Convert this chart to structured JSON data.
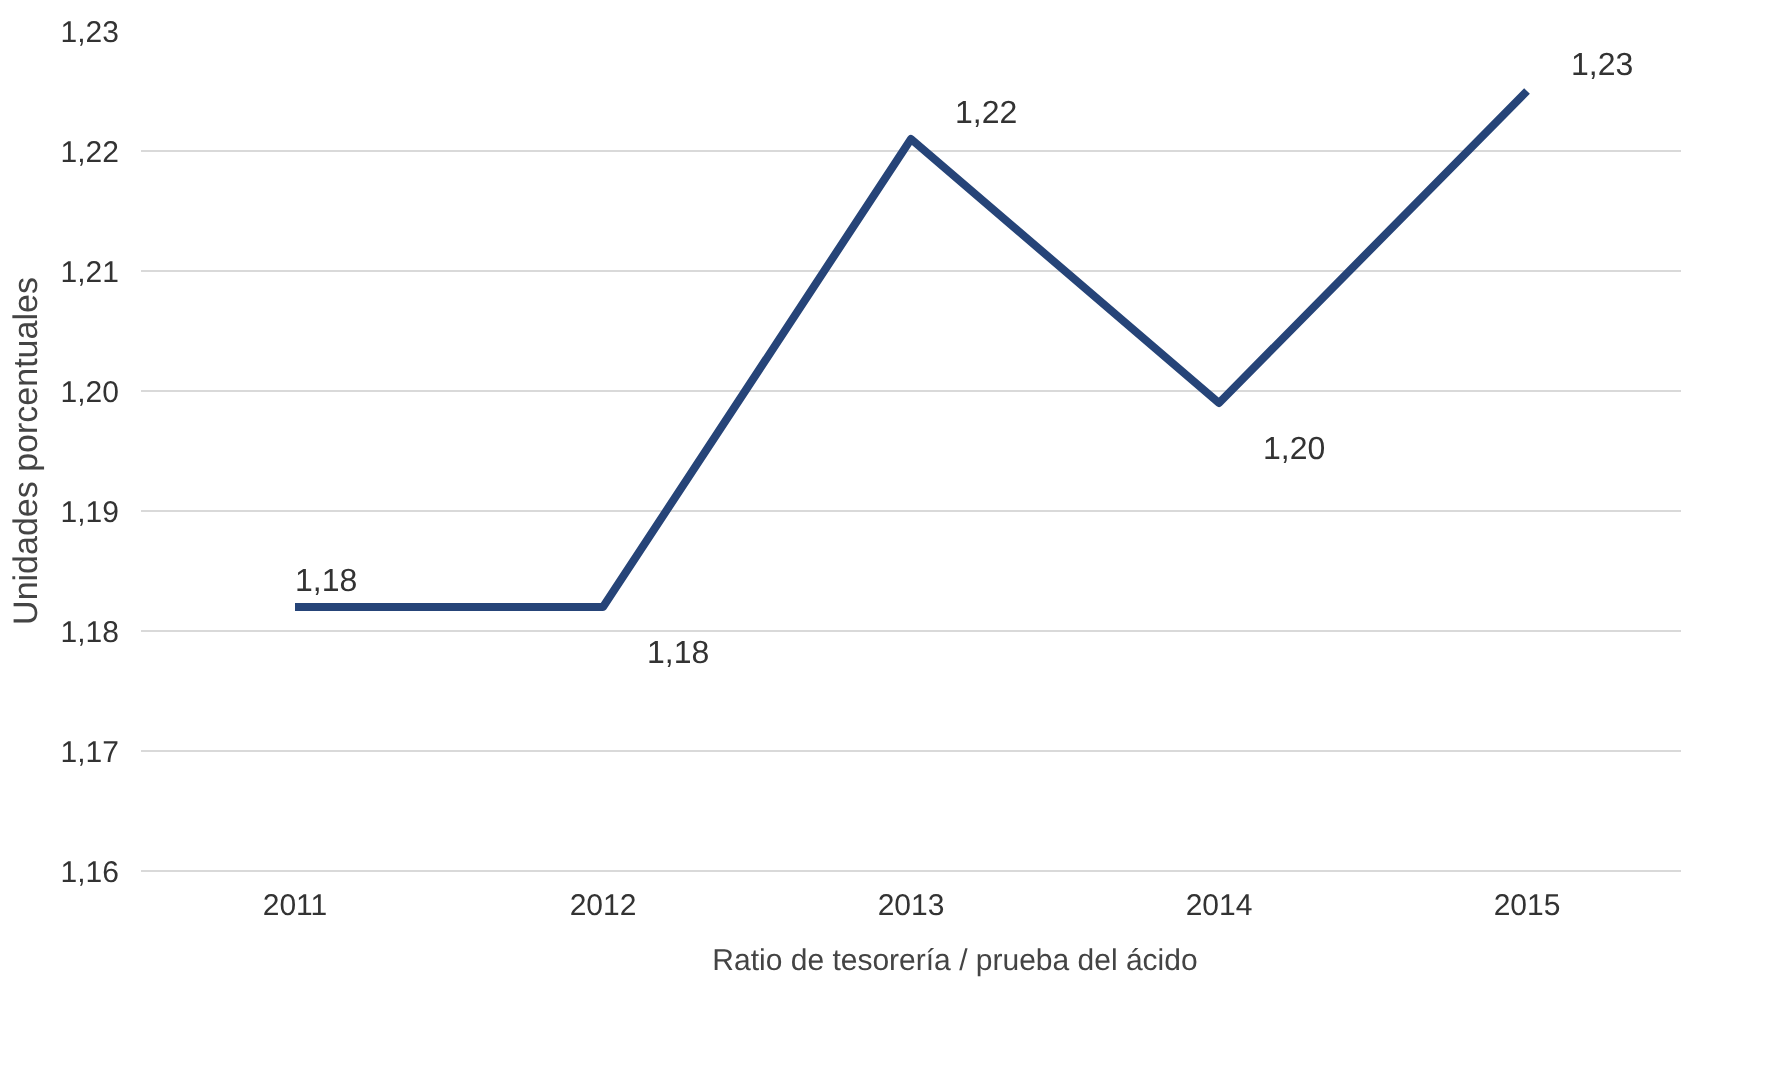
{
  "chart_data": {
    "type": "line",
    "ylabel": "Unidades porcentuales",
    "categories": [
      "2011",
      "2012",
      "2013",
      "2014",
      "2015"
    ],
    "series": [
      {
        "name": "Ratio de tesorería / prueba del ácido",
        "color": "#264478",
        "values": [
          1.182,
          1.182,
          1.221,
          1.199,
          1.225
        ],
        "value_labels": [
          "1,18",
          "1,18",
          "1,22",
          "1,20",
          "1,23"
        ]
      }
    ],
    "ylim": [
      1.16,
      1.23
    ],
    "yticks": [
      {
        "value": 1.16,
        "label": "1,16"
      },
      {
        "value": 1.17,
        "label": "1,17"
      },
      {
        "value": 1.18,
        "label": "1,18"
      },
      {
        "value": 1.19,
        "label": "1,19"
      },
      {
        "value": 1.2,
        "label": "1,20"
      },
      {
        "value": 1.21,
        "label": "1,21"
      },
      {
        "value": 1.22,
        "label": "1,22"
      },
      {
        "value": 1.23,
        "label": "1,23"
      }
    ],
    "grid": "y",
    "legend": "bottom",
    "marker": "none",
    "line_style": "solid"
  }
}
